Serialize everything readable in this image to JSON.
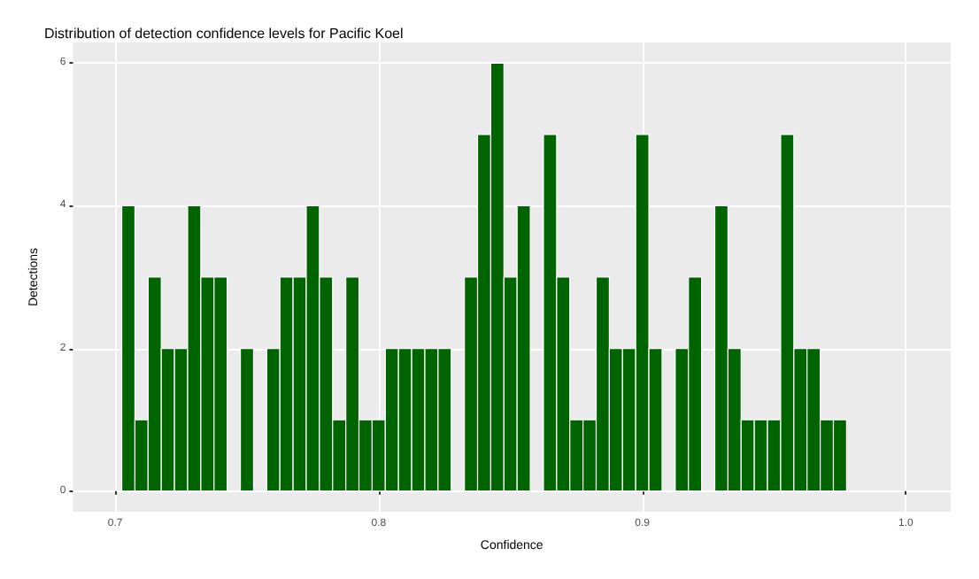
{
  "chart_data": {
    "type": "histogram",
    "title": "Distribution of detection confidence levels for Pacific Koel",
    "xlabel": "Confidence",
    "ylabel": "Detections",
    "color": "#006400",
    "bins": [
      0.7025,
      0.7075,
      0.7125,
      0.7175,
      0.7225,
      0.7275,
      0.7325,
      0.7375,
      0.7425,
      0.7475,
      0.7525,
      0.7575,
      0.7625,
      0.7675,
      0.7725,
      0.7775,
      0.7825,
      0.7875,
      0.7925,
      0.7975,
      0.8025,
      0.8075,
      0.8125,
      0.8175,
      0.8225,
      0.8275,
      0.8325,
      0.8375,
      0.8425,
      0.8475,
      0.8525,
      0.8575,
      0.8625,
      0.8675,
      0.8725,
      0.8775,
      0.8825,
      0.8875,
      0.8925,
      0.8975,
      0.9025,
      0.9075,
      0.9125,
      0.9175,
      0.9225,
      0.9275,
      0.9325,
      0.9375,
      0.9425,
      0.9475,
      0.9525,
      0.9575,
      0.9625,
      0.9675,
      0.9725,
      0.9775
    ],
    "values": [
      4,
      1,
      3,
      2,
      2,
      4,
      3,
      3,
      0,
      2,
      0,
      2,
      3,
      3,
      4,
      3,
      1,
      3,
      1,
      1,
      2,
      2,
      2,
      2,
      2,
      0,
      3,
      5,
      6,
      3,
      4,
      0,
      5,
      3,
      1,
      1,
      3,
      2,
      2,
      5,
      2,
      0,
      2,
      3,
      0,
      4,
      2,
      1,
      1,
      1,
      5,
      2,
      2,
      1,
      1
    ],
    "xlim": [
      0.684,
      1.017
    ],
    "ylim": [
      -0.29,
      6.29
    ],
    "xticks": [
      0.7,
      0.8,
      0.9,
      {
        "value": 1,
        "label": "1.0"
      }
    ],
    "yticks": [
      0,
      2,
      4,
      6
    ],
    "grid": true
  }
}
